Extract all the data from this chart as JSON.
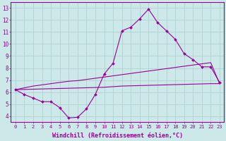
{
  "x": [
    0,
    1,
    2,
    3,
    4,
    5,
    6,
    7,
    8,
    9,
    10,
    11,
    12,
    13,
    14,
    15,
    16,
    17,
    18,
    19,
    20,
    21,
    22,
    23
  ],
  "line_main": [
    6.2,
    5.8,
    5.5,
    5.2,
    5.2,
    4.7,
    3.85,
    3.9,
    4.6,
    5.8,
    7.5,
    8.4,
    11.1,
    11.4,
    12.1,
    12.9,
    11.8,
    11.1,
    10.4,
    9.2,
    8.7,
    8.1,
    8.1,
    6.8
  ],
  "line_upper": [
    6.2,
    6.35,
    6.5,
    6.6,
    6.7,
    6.8,
    6.9,
    6.95,
    7.05,
    7.15,
    7.25,
    7.35,
    7.45,
    7.55,
    7.65,
    7.75,
    7.85,
    7.95,
    8.05,
    8.15,
    8.25,
    8.35,
    8.45,
    6.7
  ],
  "line_lower": [
    6.2,
    6.22,
    6.24,
    6.26,
    6.28,
    6.3,
    6.32,
    6.34,
    6.36,
    6.38,
    6.4,
    6.45,
    6.5,
    6.52,
    6.54,
    6.56,
    6.58,
    6.6,
    6.62,
    6.64,
    6.66,
    6.68,
    6.7,
    6.7
  ],
  "color": "#990099",
  "background": "#cce8e8",
  "grid_color": "#aacece",
  "xlabel": "Windchill (Refroidissement éolien,°C)",
  "ylim": [
    3.5,
    13.5
  ],
  "xlim": [
    -0.5,
    23.5
  ],
  "yticks": [
    4,
    5,
    6,
    7,
    8,
    9,
    10,
    11,
    12,
    13
  ],
  "xticks": [
    0,
    1,
    2,
    3,
    4,
    5,
    6,
    7,
    8,
    9,
    10,
    11,
    12,
    13,
    14,
    15,
    16,
    17,
    18,
    19,
    20,
    21,
    22,
    23
  ],
  "tick_fontsize": 5.0,
  "ylabel_fontsize": 5.5,
  "xlabel_fontsize": 6.0
}
